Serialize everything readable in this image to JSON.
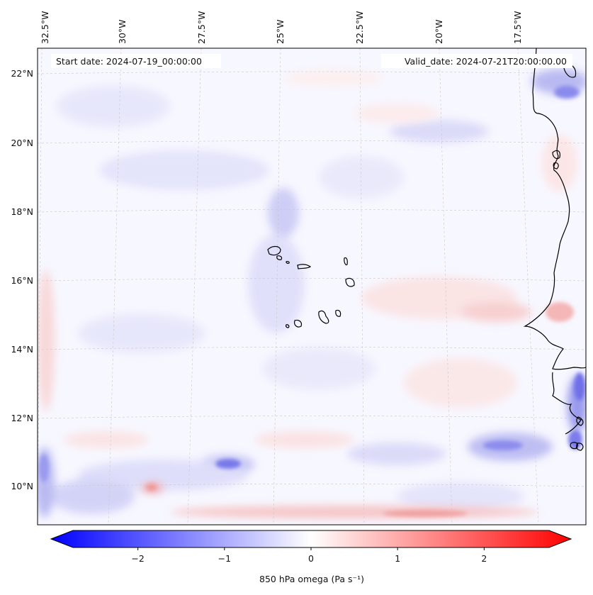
{
  "header": {
    "start_label": "Start date: 2024-07-19_00:00:00",
    "valid_label": "Valid_date: 2024-07-21T20:00:00.00"
  },
  "map": {
    "lon_labels": [
      "32.5°W",
      "30°W",
      "27.5°W",
      "25°W",
      "22.5°W",
      "20°W",
      "17.5°W"
    ],
    "lat_labels": [
      "22°N",
      "20°N",
      "18°N",
      "16°N",
      "14°N",
      "12°N",
      "10°N"
    ],
    "coastline_color": "#000000",
    "gridline_color": "#c8c8c8",
    "background_color": "#f7f7ff"
  },
  "colorbar": {
    "label": "850 hPa omega (Pa s⁻¹)",
    "ticks": [
      "−2",
      "−1",
      "0",
      "1",
      "2"
    ],
    "tick_values": [
      -2,
      -1,
      0,
      1,
      2
    ],
    "vmin": -2.75,
    "vmax": 2.75,
    "low_color": "#0000ff",
    "mid_color": "#ffffff",
    "high_color": "#ff0000"
  }
}
